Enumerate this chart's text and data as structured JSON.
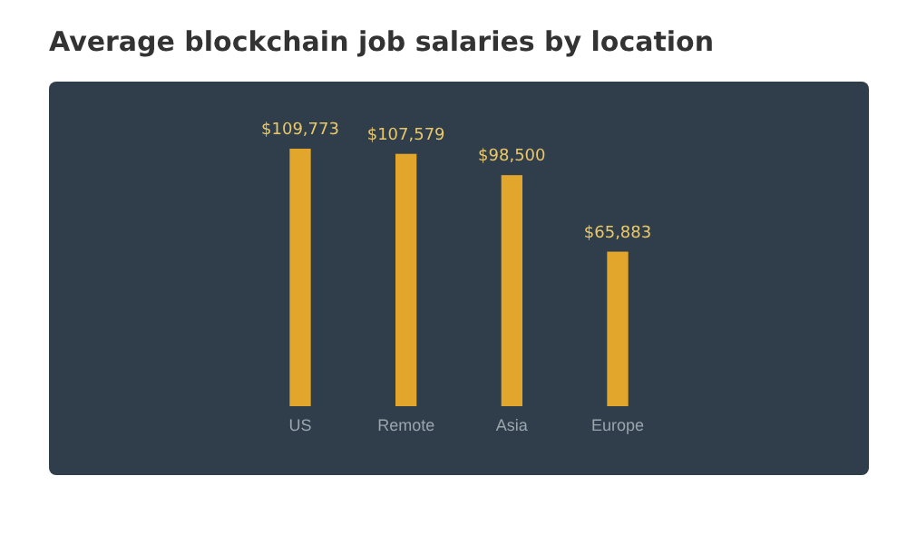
{
  "chart_data": {
    "type": "bar",
    "title": "Average blockchain job salaries by location",
    "categories": [
      "US",
      "Remote",
      "Asia",
      "Europe"
    ],
    "values": [
      109773,
      107579,
      98500,
      65883
    ],
    "value_labels": [
      "$109,773",
      "$107,579",
      "$98,500",
      "$65,883"
    ],
    "color": "#e2a62c"
  }
}
